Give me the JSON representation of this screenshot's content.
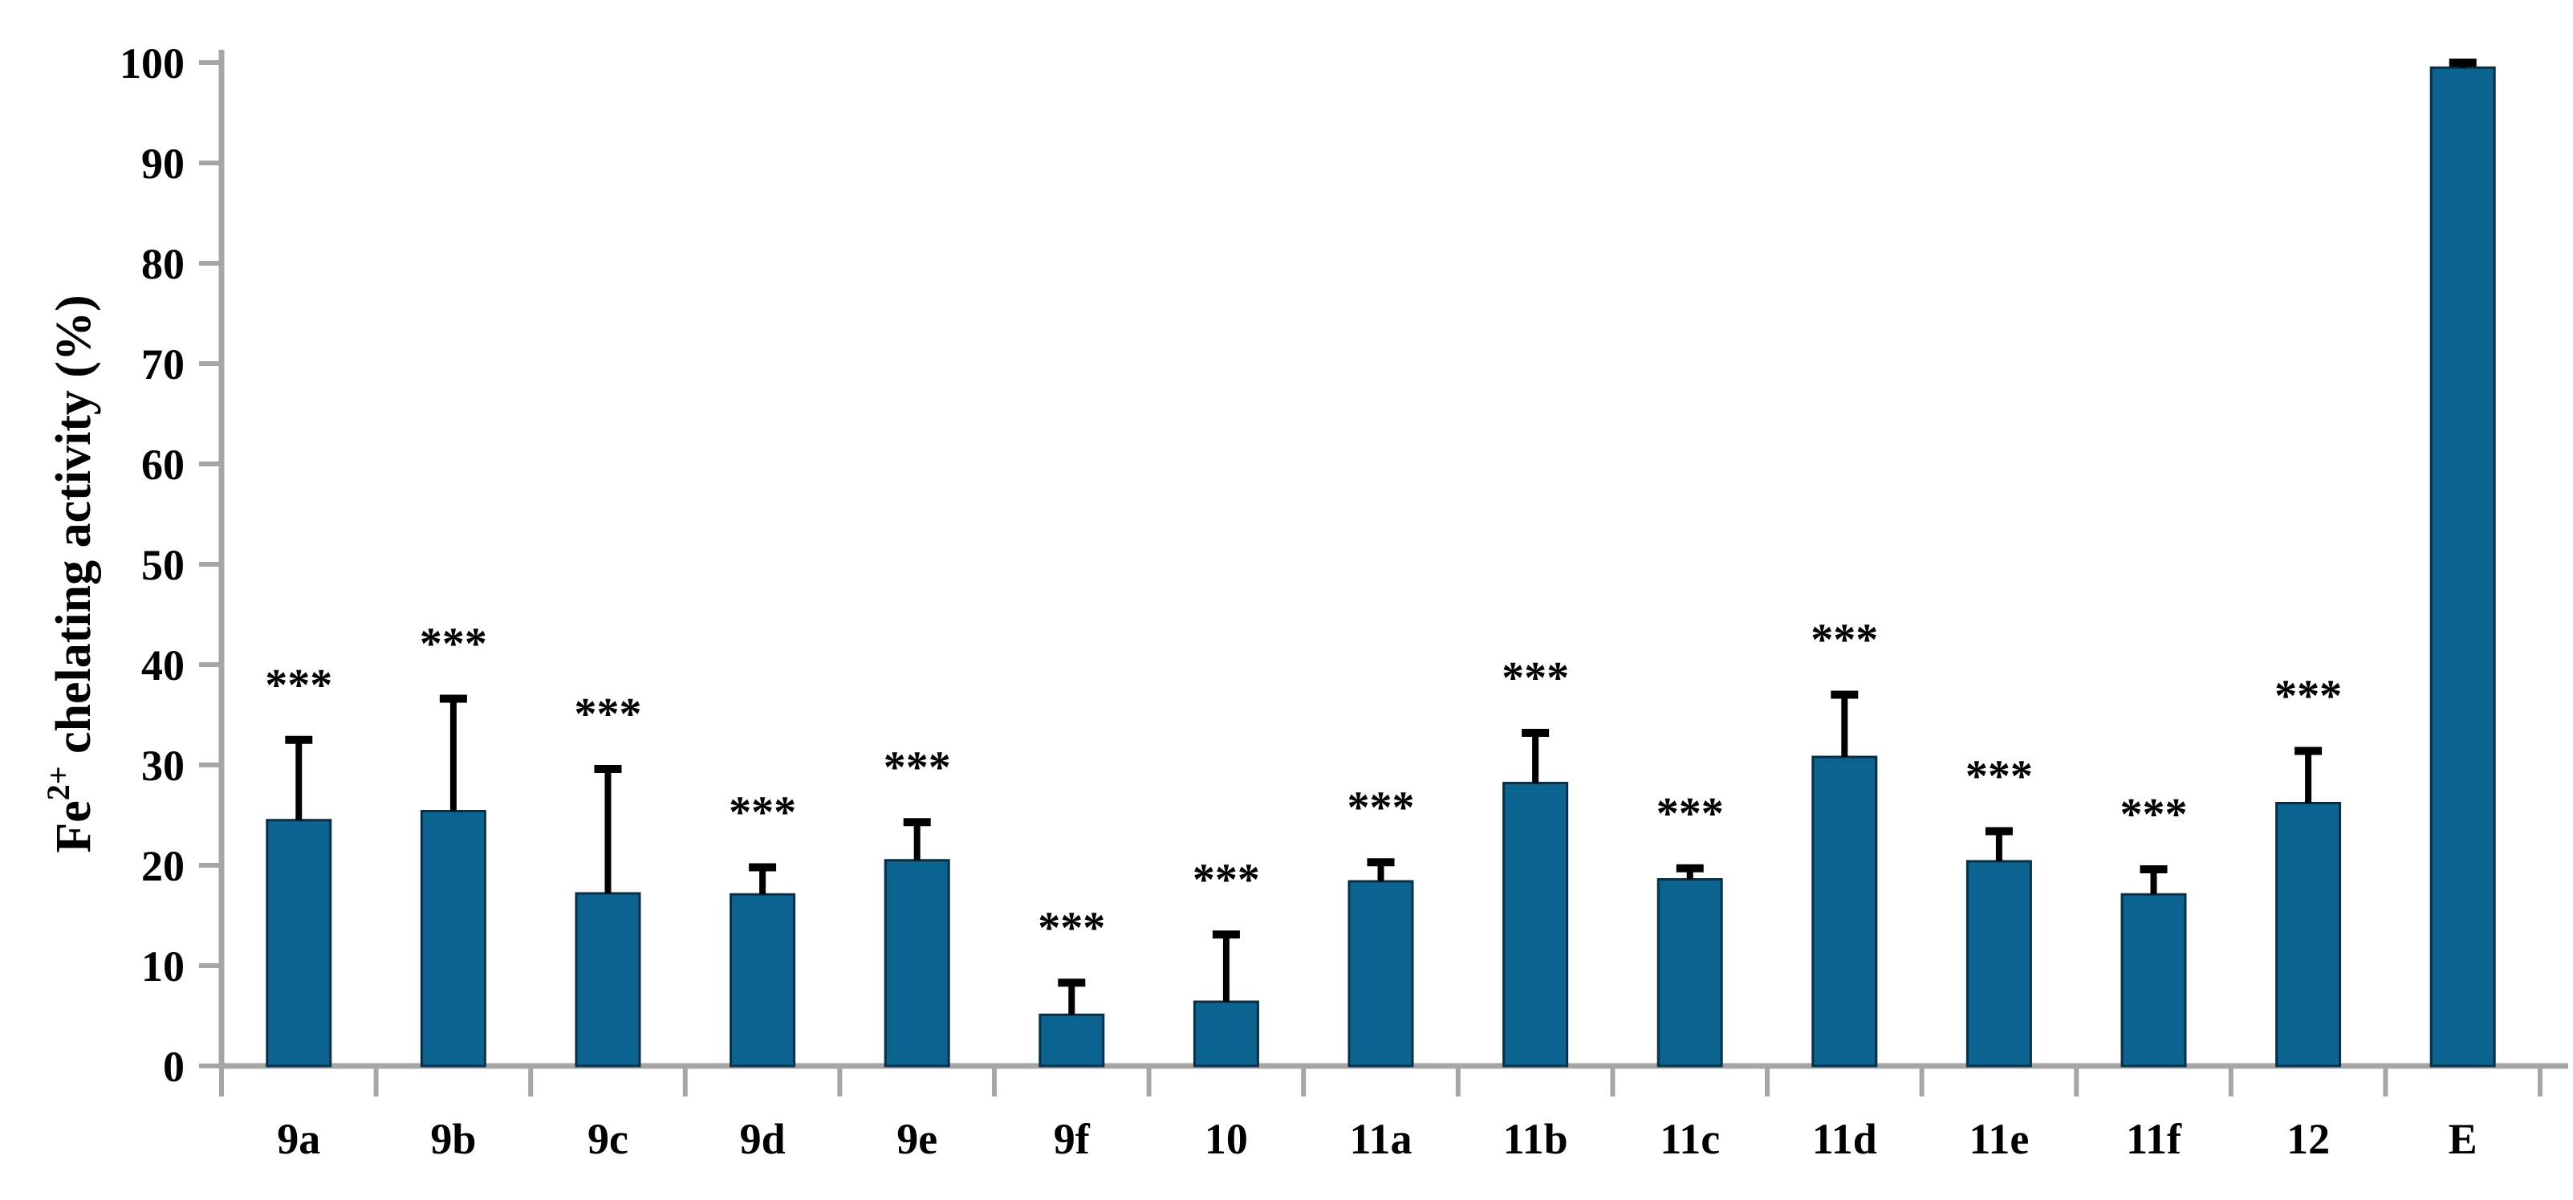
{
  "figure": {
    "background": "#ffffff"
  },
  "chart_data": {
    "type": "bar",
    "title": "",
    "xlabel": "",
    "ylabel": "Fe2+ chelating activity (%)",
    "ylabel_parts": {
      "base": "Fe",
      "superscript": "2+",
      "rest": " chelating activity (%)"
    },
    "categories": [
      "9a",
      "9b",
      "9c",
      "9d",
      "9e",
      "9f",
      "10",
      "11a",
      "11b",
      "11c",
      "11d",
      "11e",
      "11f",
      "12",
      "E"
    ],
    "series": [
      {
        "name": "Fe2+ chelating activity (%)",
        "values": [
          24.5,
          25.4,
          17.2,
          17.1,
          20.5,
          5.1,
          6.4,
          18.4,
          28.2,
          18.6,
          30.8,
          20.4,
          17.1,
          26.2,
          99.5
        ],
        "errors_plus": [
          8.0,
          11.2,
          12.4,
          2.7,
          3.8,
          3.2,
          6.7,
          1.9,
          5.0,
          1.1,
          6.2,
          3.0,
          2.5,
          5.2,
          0.5
        ],
        "significance": [
          "***",
          "***",
          "***",
          "***",
          "***",
          "***",
          "***",
          "***",
          "***",
          "***",
          "***",
          "***",
          "***",
          "***",
          ""
        ]
      }
    ],
    "ylim": [
      0,
      100
    ],
    "ytick_step": 10,
    "ytick_labels": [
      "0",
      "10",
      "20",
      "30",
      "40",
      "50",
      "60",
      "70",
      "80",
      "90",
      "100"
    ],
    "grid": false,
    "legend_position": "none",
    "colors": {
      "bar_fill": "#0B648F",
      "bar_edge": "#082F45",
      "axis_line": "#A6A6A6",
      "error_bar": "#000000",
      "text": "#000000"
    }
  }
}
